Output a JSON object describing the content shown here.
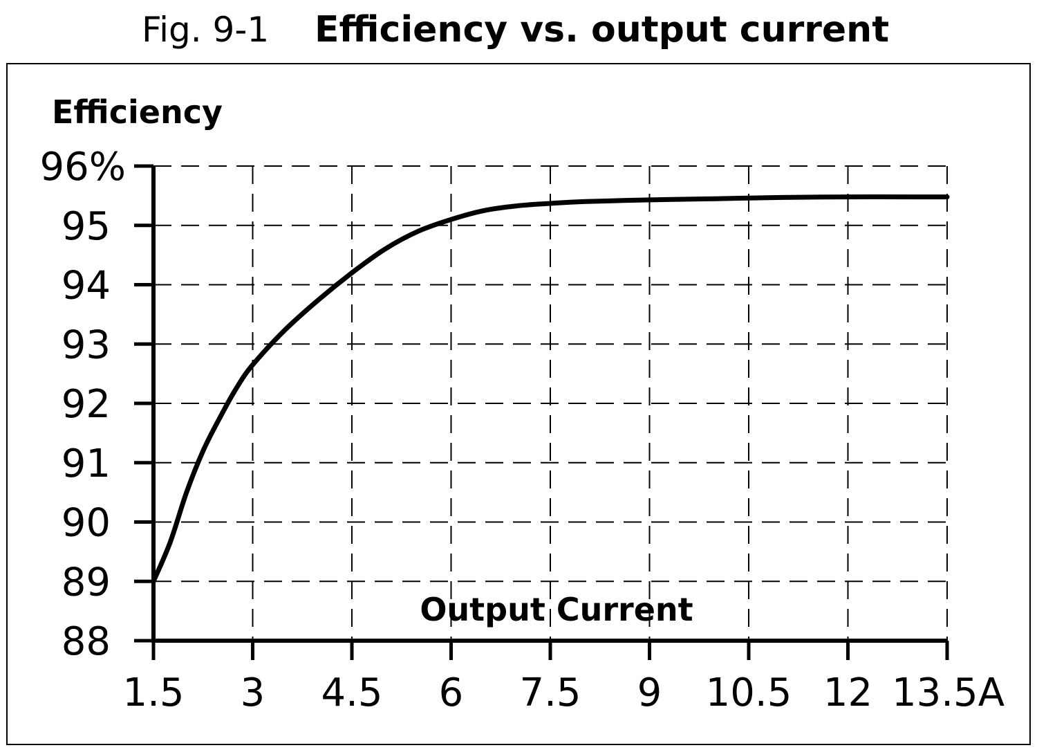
{
  "figure": {
    "label": "Fig. 9-1",
    "title": "Efficiency vs. output current"
  },
  "chart_data": {
    "type": "line",
    "title": "Efficiency vs. output current",
    "xlabel": "Output Current",
    "ylabel": "Efficiency",
    "x_unit": "A",
    "y_unit": "%",
    "xlim": [
      1.5,
      13.5
    ],
    "ylim": [
      88,
      96
    ],
    "x_ticks": [
      1.5,
      3,
      4.5,
      6,
      7.5,
      9,
      10.5,
      12,
      13.5
    ],
    "y_ticks": [
      88,
      89,
      90,
      91,
      92,
      93,
      94,
      95,
      96
    ],
    "x_tick_labels": [
      "1.5",
      "3",
      "4.5",
      "6",
      "7.5",
      "9",
      "10.5",
      "12",
      "13.5A"
    ],
    "y_tick_labels": [
      "88",
      "89",
      "90",
      "91",
      "92",
      "93",
      "94",
      "95",
      "96%"
    ],
    "grid": true,
    "grid_style": "dashed",
    "legend": "none",
    "line_color": "#000000",
    "series": [
      {
        "x": [
          1.5,
          1.75,
          2.0,
          2.25,
          2.5,
          2.75,
          3.0,
          3.5,
          4.0,
          4.5,
          5.0,
          5.5,
          6.0,
          6.5,
          7.0,
          7.5,
          8.0,
          9.0,
          10.0,
          10.5,
          11.0,
          12.0,
          13.0,
          13.5
        ],
        "y": [
          89.0,
          89.65,
          90.5,
          91.2,
          91.75,
          92.25,
          92.65,
          93.25,
          93.75,
          94.2,
          94.6,
          94.9,
          95.1,
          95.25,
          95.33,
          95.37,
          95.4,
          95.43,
          95.45,
          95.46,
          95.47,
          95.48,
          95.48,
          95.48
        ]
      }
    ]
  }
}
